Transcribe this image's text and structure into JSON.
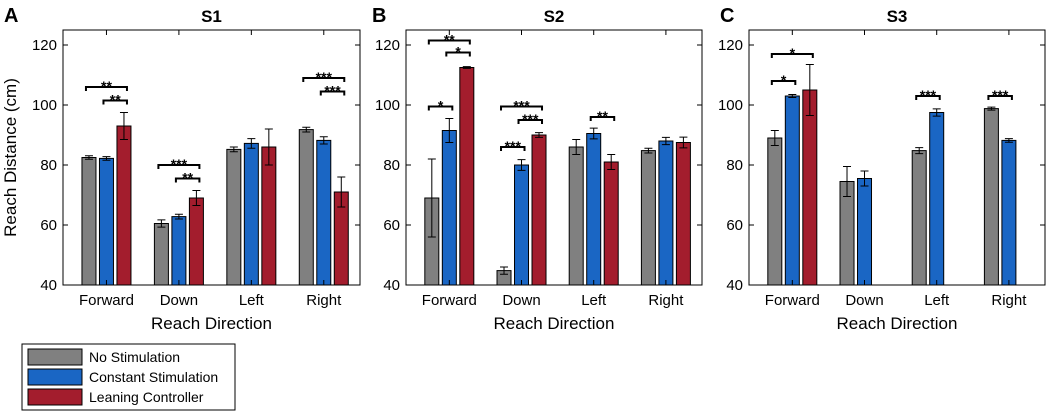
{
  "colors": {
    "no_stimulation": "#808080",
    "constant_stimulation": "#1a66c4",
    "leaning_controller": "#a31d2d"
  },
  "legend": [
    {
      "key": "no_stimulation",
      "label": "No Stimulation"
    },
    {
      "key": "constant_stimulation",
      "label": "Constant Stimulation"
    },
    {
      "key": "leaning_controller",
      "label": "Leaning Controller"
    }
  ],
  "chart_data": [
    {
      "type": "bar",
      "letter": "A",
      "title": "S1",
      "xlabel": "Reach Direction",
      "ylabel": "Reach Distance (cm)",
      "ylim": [
        40,
        125
      ],
      "yticks": [
        40,
        60,
        80,
        100,
        120
      ],
      "categories": [
        "Forward",
        "Down",
        "Left",
        "Right"
      ],
      "series": [
        {
          "name": "No Stimulation",
          "key": "no_stimulation",
          "values": [
            82.5,
            60.5,
            85.2,
            91.8
          ],
          "errors": [
            0.6,
            1.2,
            0.8,
            0.8
          ]
        },
        {
          "name": "Constant Stimulation",
          "key": "constant_stimulation",
          "values": [
            82.2,
            62.8,
            87.2,
            88.2
          ],
          "errors": [
            0.6,
            0.8,
            1.6,
            1.2
          ]
        },
        {
          "name": "Leaning Controller",
          "key": "leaning_controller",
          "values": [
            93.0,
            69.0,
            86.0,
            71.0
          ],
          "errors": [
            4.5,
            2.5,
            6.0,
            5.0
          ]
        }
      ],
      "significance": [
        {
          "category": 0,
          "from": 0,
          "to": 2,
          "y": 106.0,
          "label": "**"
        },
        {
          "category": 0,
          "from": 1,
          "to": 2,
          "y": 101.5,
          "label": "**"
        },
        {
          "category": 1,
          "from": 0,
          "to": 2,
          "y": 80.0,
          "label": "***"
        },
        {
          "category": 1,
          "from": 1,
          "to": 2,
          "y": 75.5,
          "label": "**"
        },
        {
          "category": 3,
          "from": 0,
          "to": 2,
          "y": 109.0,
          "label": "***"
        },
        {
          "category": 3,
          "from": 1,
          "to": 2,
          "y": 104.5,
          "label": "***"
        }
      ]
    },
    {
      "type": "bar",
      "letter": "B",
      "title": "S2",
      "xlabel": "Reach Direction",
      "ylabel": "",
      "ylim": [
        40,
        125
      ],
      "yticks": [
        40,
        60,
        80,
        100,
        120
      ],
      "categories": [
        "Forward",
        "Down",
        "Left",
        "Right"
      ],
      "series": [
        {
          "name": "No Stimulation",
          "key": "no_stimulation",
          "values": [
            69.0,
            44.8,
            86.0,
            84.8
          ],
          "errors": [
            13.0,
            1.2,
            2.5,
            0.8
          ]
        },
        {
          "name": "Constant Stimulation",
          "key": "constant_stimulation",
          "values": [
            91.5,
            80.0,
            90.5,
            88.0
          ],
          "errors": [
            4.0,
            1.8,
            1.8,
            1.2
          ]
        },
        {
          "name": "Leaning Controller",
          "key": "leaning_controller",
          "values": [
            112.5,
            90.0,
            81.0,
            87.5
          ],
          "errors": [
            0.3,
            0.8,
            2.5,
            1.8
          ]
        }
      ],
      "significance": [
        {
          "category": 0,
          "from": 0,
          "to": 2,
          "y": 121.5,
          "label": "**"
        },
        {
          "category": 0,
          "from": 1,
          "to": 2,
          "y": 117.5,
          "label": "*"
        },
        {
          "category": 0,
          "from": 0,
          "to": 1,
          "y": 99.5,
          "label": "*"
        },
        {
          "category": 1,
          "from": 0,
          "to": 2,
          "y": 99.5,
          "label": "***"
        },
        {
          "category": 1,
          "from": 1,
          "to": 2,
          "y": 95.0,
          "label": "***"
        },
        {
          "category": 1,
          "from": 0,
          "to": 1,
          "y": 86.0,
          "label": "***"
        },
        {
          "category": 2,
          "from": 1,
          "to": 2,
          "y": 96.0,
          "label": "**"
        }
      ]
    },
    {
      "type": "bar",
      "letter": "C",
      "title": "S3",
      "xlabel": "Reach Direction",
      "ylabel": "",
      "ylim": [
        40,
        125
      ],
      "yticks": [
        40,
        60,
        80,
        100,
        120
      ],
      "categories": [
        "Forward",
        "Down",
        "Left",
        "Right"
      ],
      "series": [
        {
          "name": "No Stimulation",
          "key": "no_stimulation",
          "values": [
            89.0,
            74.5,
            84.8,
            98.8
          ],
          "errors": [
            2.5,
            5.0,
            1.0,
            0.5
          ]
        },
        {
          "name": "Constant Stimulation",
          "key": "constant_stimulation",
          "values": [
            103.0,
            75.5,
            97.5,
            88.2
          ],
          "errors": [
            0.5,
            2.5,
            1.2,
            0.6
          ]
        },
        {
          "name": "Leaning Controller",
          "key": "leaning_controller",
          "values": [
            105.0,
            null,
            null,
            null
          ],
          "errors": [
            8.5,
            null,
            null,
            null
          ]
        }
      ],
      "significance": [
        {
          "category": 0,
          "from": 0,
          "to": 2,
          "y": 117.0,
          "label": "*"
        },
        {
          "category": 0,
          "from": 0,
          "to": 1,
          "y": 108.0,
          "label": "*"
        },
        {
          "category": 2,
          "from": 0,
          "to": 1,
          "y": 103.0,
          "label": "***"
        },
        {
          "category": 3,
          "from": 0,
          "to": 1,
          "y": 103.0,
          "label": "***"
        }
      ]
    }
  ]
}
